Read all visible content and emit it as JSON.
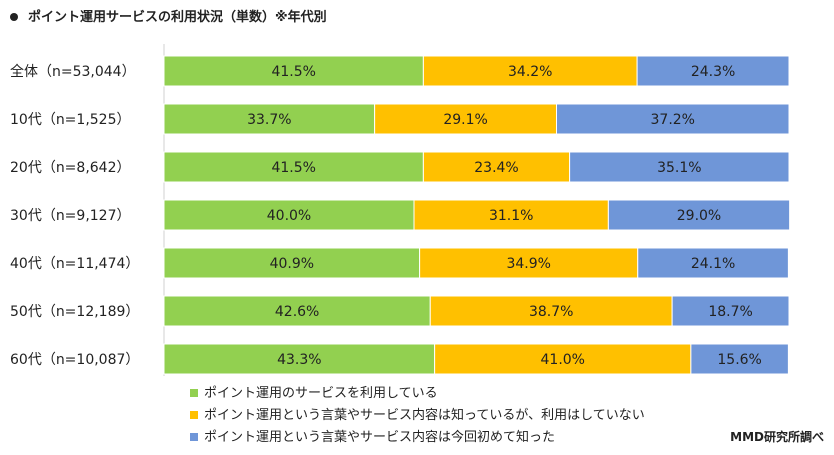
{
  "chart_data": {
    "type": "bar",
    "orientation": "horizontal",
    "stacked": true,
    "title": "ポイント運用サービスの利用状況（単数）※年代別",
    "categories": [
      "全体（n=53,044）",
      "10代（n=1,525）",
      "20代（n=8,642）",
      "30代（n=9,127）",
      "40代（n=11,474）",
      "50代（n=12,189）",
      "60代（n=10,087）"
    ],
    "series": [
      {
        "name": "ポイント運用のサービスを利用している",
        "color": "#92d050",
        "values": [
          41.5,
          33.7,
          41.5,
          40.0,
          40.9,
          42.6,
          43.3
        ]
      },
      {
        "name": "ポイント運用という言葉やサービス内容は知っているが、利用はしていない",
        "color": "#ffc000",
        "values": [
          34.2,
          29.1,
          23.4,
          31.1,
          34.9,
          38.7,
          41.0
        ]
      },
      {
        "name": "ポイント運用という言葉やサービス内容は今回初めて知った",
        "color": "#6f96d8",
        "values": [
          24.3,
          37.2,
          35.1,
          29.0,
          24.1,
          18.7,
          15.6
        ]
      }
    ],
    "value_suffix": "%",
    "xlim": [
      0,
      100
    ],
    "legend_position": "bottom",
    "grid": false
  },
  "source": "MMD研究所調べ"
}
